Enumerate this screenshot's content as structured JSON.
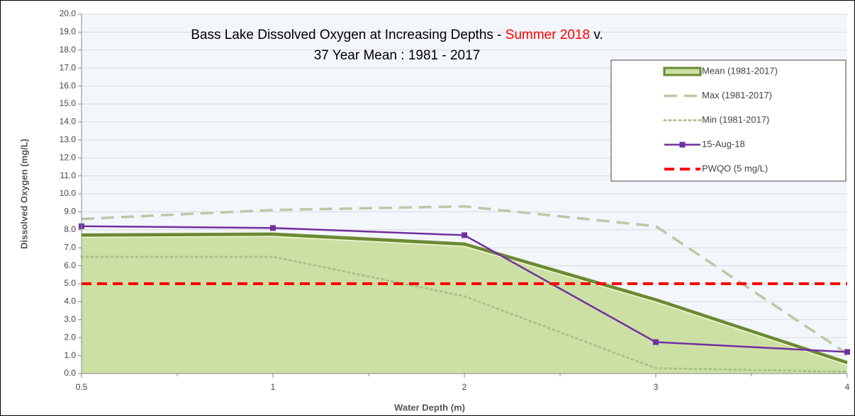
{
  "chart_data": {
    "type": "line",
    "title": [
      "Bass Lake Dissolved Oxygen at Increasing Depths - ",
      "Summer 2018",
      " v.",
      "37 Year Mean : 1981 - 2017"
    ],
    "title_colors": [
      "#000000",
      "#ff0000",
      "#000000",
      "#000000"
    ],
    "x_label": "Water Depth (m)",
    "y_label": "Dissolved Oxygen (mg/L)",
    "categories": [
      "0.5",
      "1",
      "2",
      "3",
      "4"
    ],
    "ylim": [
      0,
      20
    ],
    "yticks": [
      {
        "value": 0,
        "label": "0.0"
      },
      {
        "value": 1,
        "label": "1.0"
      },
      {
        "value": 2,
        "label": "2.0"
      },
      {
        "value": 3,
        "label": "3.0"
      },
      {
        "value": 4,
        "label": "4.0"
      },
      {
        "value": 5,
        "label": "5.0"
      },
      {
        "value": 6,
        "label": "6.0"
      },
      {
        "value": 7,
        "label": "7.0"
      },
      {
        "value": 8,
        "label": "8.0"
      },
      {
        "value": 9,
        "label": "9.0"
      },
      {
        "value": 10,
        "label": "10.0"
      },
      {
        "value": 11,
        "label": "11.0"
      },
      {
        "value": 12,
        "label": "12.0"
      },
      {
        "value": 13,
        "label": "13.0"
      },
      {
        "value": 14,
        "label": "14.0"
      },
      {
        "value": 15,
        "label": "15.0"
      },
      {
        "value": 16,
        "label": "16.0"
      },
      {
        "value": 17,
        "label": "17.0"
      },
      {
        "value": 18,
        "label": "18.0"
      },
      {
        "value": 19,
        "label": "19.0"
      },
      {
        "value": 20,
        "label": "20.0"
      }
    ],
    "grid": true,
    "legend": "upper right",
    "series": [
      {
        "name": "Mean (1981-2017)",
        "style": "area",
        "color": "#6b8a32",
        "fill": "#cde0a4",
        "values": [
          7.7,
          7.75,
          7.2,
          4.1,
          0.6
        ]
      },
      {
        "name": "Max (1981-2017)",
        "style": "dashed",
        "color": "#bcc8a6",
        "values": [
          8.6,
          9.1,
          9.3,
          8.2,
          1.1
        ]
      },
      {
        "name": "Min (1981-2017)",
        "style": "dotted",
        "color": "#a9c189",
        "values": [
          6.5,
          6.5,
          4.3,
          0.3,
          0.1
        ]
      },
      {
        "name": "15-Aug-18",
        "style": "marker",
        "color": "#7030a0",
        "values": [
          8.2,
          8.1,
          7.7,
          1.75,
          1.2
        ]
      },
      {
        "name": "PWQO (5 mg/L)",
        "style": "bold-dashed",
        "color": "#ff0000",
        "values": [
          5,
          5,
          5,
          5,
          5
        ]
      }
    ]
  }
}
